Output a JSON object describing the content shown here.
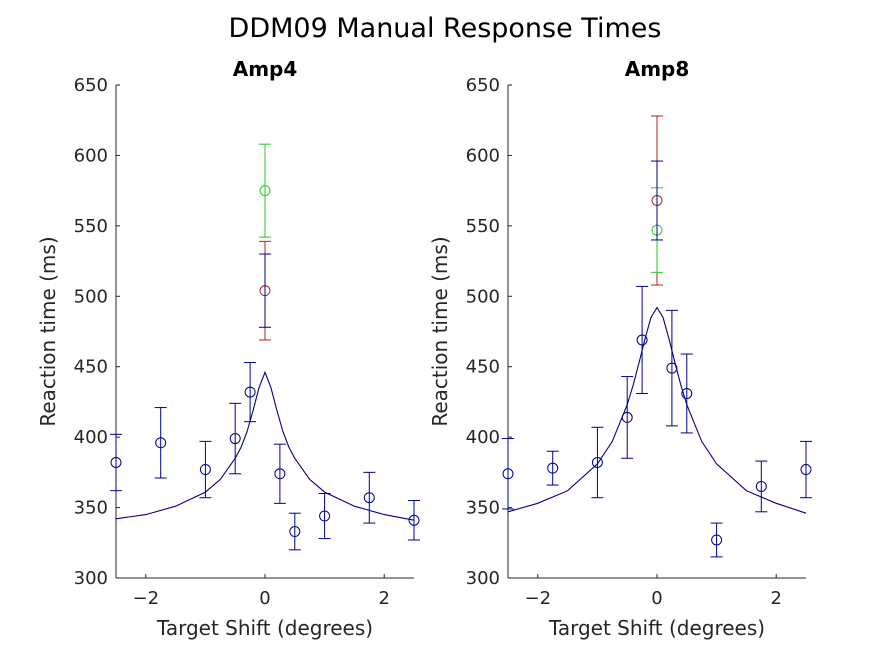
{
  "figure_title": "DDM09 Manual Response Times",
  "colors": {
    "blue": "#00008b",
    "red": "#b22222",
    "green": "#22cc22",
    "axis": "#262626"
  },
  "chart_data": [
    {
      "type": "scatter",
      "title": "Amp4",
      "xlabel": "Target Shift (degrees)",
      "ylabel": "Reaction time (ms)",
      "xlim": [
        -2.5,
        2.5
      ],
      "ylim": [
        300,
        650
      ],
      "xticks": [
        -2,
        0,
        2
      ],
      "yticks": [
        300,
        350,
        400,
        450,
        500,
        550,
        600,
        650
      ],
      "grid": false,
      "series": [
        {
          "color": "blue",
          "marker": "circle",
          "x": [
            -2.5,
            -1.75,
            -1.0,
            -0.5,
            -0.25,
            0.25,
            0.5,
            1.0,
            1.75,
            2.5
          ],
          "y": [
            382,
            396,
            377,
            399,
            432,
            374,
            333,
            344,
            357,
            341
          ],
          "err": [
            20,
            25,
            20,
            25,
            21,
            21,
            13,
            16,
            18,
            14
          ]
        },
        {
          "color": "red",
          "marker": "circle",
          "x": [
            0
          ],
          "y": [
            504
          ],
          "err": [
            35
          ]
        },
        {
          "color": "green",
          "marker": "circle",
          "x": [
            0
          ],
          "y": [
            575
          ],
          "err": [
            33
          ]
        },
        {
          "color": "blue",
          "marker": "none",
          "x": [
            0
          ],
          "y": [
            504
          ],
          "err": [
            26
          ]
        }
      ],
      "fit": {
        "color": "blue",
        "x": [
          -2.5,
          -2.0,
          -1.5,
          -1.0,
          -0.75,
          -0.5,
          -0.4,
          -0.3,
          -0.2,
          -0.1,
          0.0,
          0.1,
          0.2,
          0.3,
          0.4,
          0.5,
          0.75,
          1.0,
          1.5,
          2.0,
          2.5
        ],
        "y": [
          342,
          345,
          351,
          361,
          370,
          385,
          393,
          404,
          419,
          435,
          446,
          435,
          419,
          404,
          393,
          385,
          370,
          361,
          351,
          345,
          341
        ]
      }
    },
    {
      "type": "scatter",
      "title": "Amp8",
      "xlabel": "Target Shift (degrees)",
      "ylabel": "Reaction time (ms)",
      "xlim": [
        -2.5,
        2.5
      ],
      "ylim": [
        300,
        650
      ],
      "xticks": [
        -2,
        0,
        2
      ],
      "yticks": [
        300,
        350,
        400,
        450,
        500,
        550,
        600,
        650
      ],
      "grid": false,
      "series": [
        {
          "color": "blue",
          "marker": "circle",
          "x": [
            -2.5,
            -1.75,
            -1.0,
            -0.5,
            -0.25,
            0.25,
            0.5,
            1.0,
            1.75,
            2.5
          ],
          "y": [
            374,
            378,
            382,
            414,
            469,
            449,
            431,
            327,
            365,
            377
          ],
          "err": [
            25,
            12,
            25,
            29,
            38,
            41,
            28,
            12,
            18,
            20
          ]
        },
        {
          "color": "red",
          "marker": "circle",
          "x": [
            0
          ],
          "y": [
            568
          ],
          "err": [
            60
          ]
        },
        {
          "color": "green",
          "marker": "circle",
          "x": [
            0
          ],
          "y": [
            547
          ],
          "err": [
            30
          ]
        },
        {
          "color": "blue",
          "marker": "none",
          "x": [
            0
          ],
          "y": [
            568
          ],
          "err": [
            28
          ]
        }
      ],
      "fit": {
        "color": "blue",
        "x": [
          -2.5,
          -2.0,
          -1.5,
          -1.0,
          -0.75,
          -0.5,
          -0.4,
          -0.3,
          -0.2,
          -0.1,
          0.0,
          0.1,
          0.2,
          0.3,
          0.4,
          0.5,
          0.75,
          1.0,
          1.5,
          2.0,
          2.5
        ],
        "y": [
          347,
          353,
          362,
          381,
          397,
          423,
          437,
          453,
          470,
          485,
          492,
          485,
          470,
          453,
          437,
          423,
          397,
          381,
          362,
          353,
          346
        ]
      }
    }
  ]
}
